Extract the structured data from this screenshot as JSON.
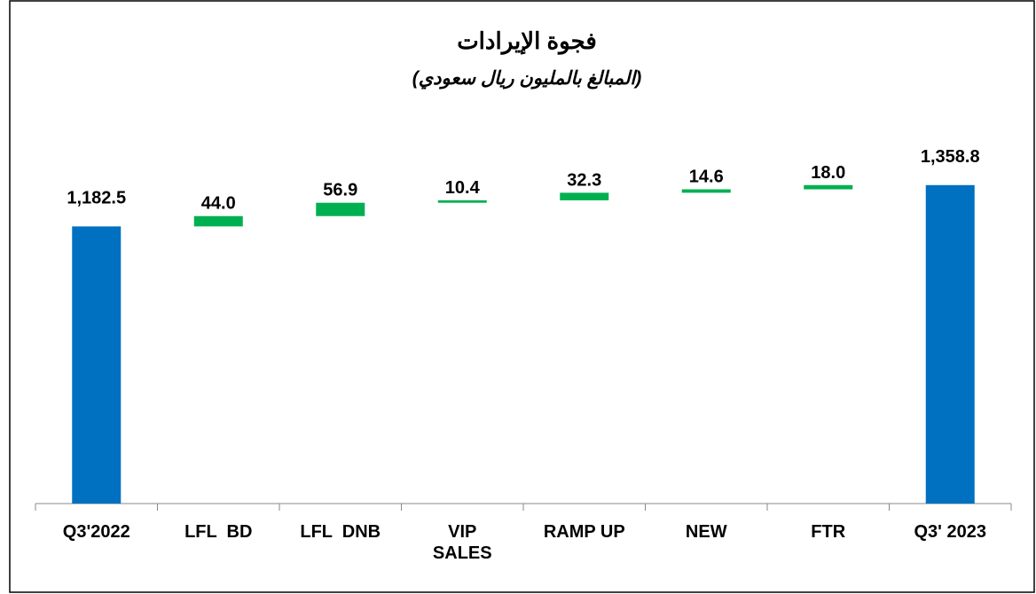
{
  "chart_data": {
    "type": "waterfall",
    "title": "فجوة الإيرادات",
    "subtitle": "(المبالغ بالمليون ريال سعودي)",
    "categories": [
      "Q3'2022",
      "LFL  BD",
      "LFL  DNB",
      "VIP SALES",
      "RAMP UP",
      "NEW",
      "FTR",
      "Q3' 2023"
    ],
    "values": [
      1182.5,
      44.0,
      56.9,
      10.4,
      32.3,
      14.6,
      18.0,
      1358.8
    ],
    "value_labels": [
      "1,182.5",
      "44.0",
      "56.9",
      "10.4",
      "32.3",
      "14.6",
      "18.0",
      "1,358.8"
    ],
    "is_total": [
      true,
      false,
      false,
      false,
      false,
      false,
      false,
      true
    ],
    "total_color": "#0070c0",
    "increase_color": "#00b050",
    "ylim": [
      0,
      1600
    ]
  }
}
